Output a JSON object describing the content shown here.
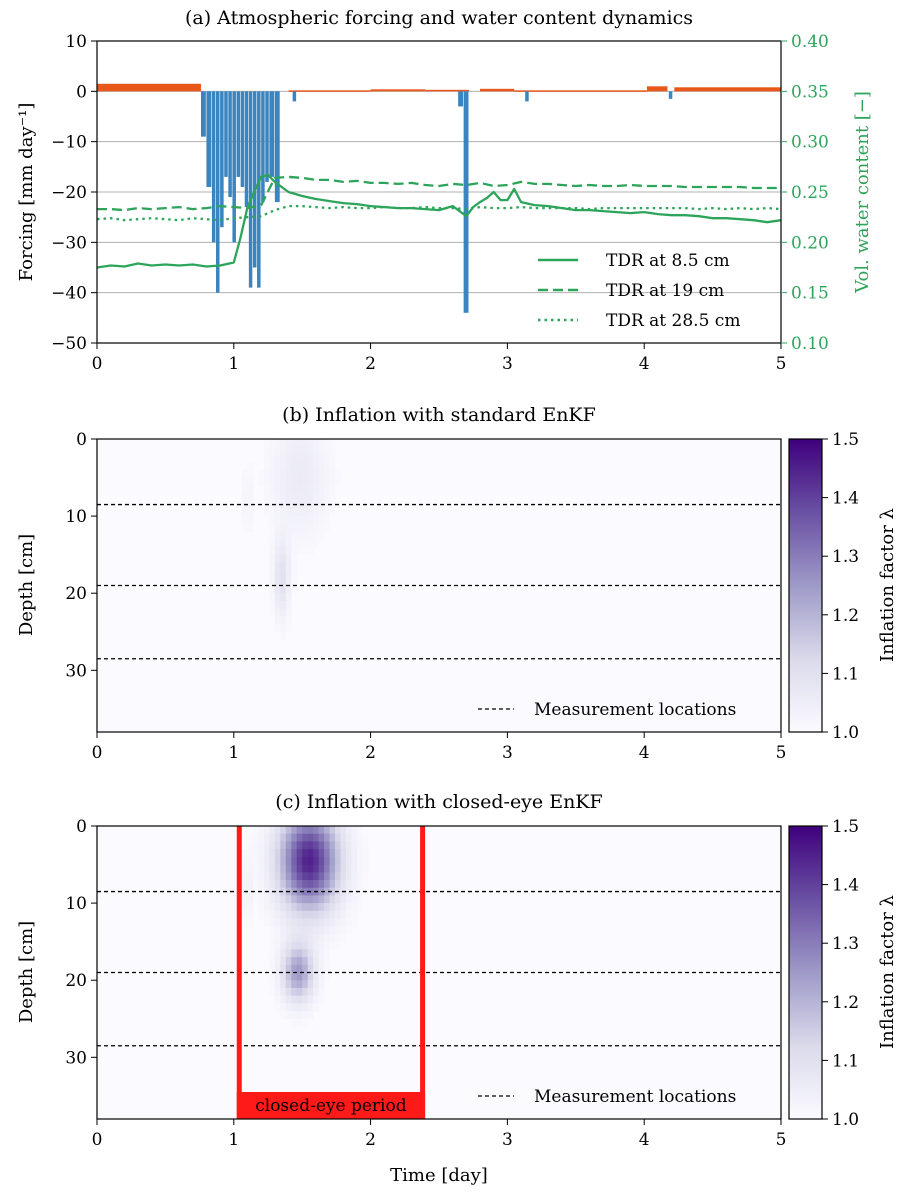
{
  "colors": {
    "rain": "#3a85c0",
    "evap": "#e8581a",
    "tdr": "#2ca55a",
    "closed": "#ff1a1a",
    "cmap_low": "#fbfaff",
    "cmap_high": "#3f007d"
  },
  "chart_data": [
    {
      "type": "bar",
      "title": "(a) Atmospheric forcing and water content dynamics",
      "xlabel": "",
      "ylabel": "Forcing [mm day⁻¹]",
      "y2label": "Vol. water content [−]",
      "xlim": [
        0,
        5
      ],
      "ylim": [
        -50,
        10
      ],
      "y2lim": [
        0.1,
        0.4
      ],
      "x_ticks": [
        "0",
        "1",
        "2",
        "3",
        "4",
        "5"
      ],
      "y_ticks": [
        "10",
        "0",
        "−10",
        "−20",
        "−30",
        "−40",
        "−50"
      ],
      "y2_ticks": [
        "0.40",
        "0.35",
        "0.30",
        "0.25",
        "0.20",
        "0.15",
        "0.10"
      ],
      "grid": "horizontal",
      "legend_position": "bottom-right",
      "evaporation": [
        {
          "x0": 0.0,
          "x1": 0.76,
          "value": 1.5
        },
        {
          "x0": 1.4,
          "x1": 2.0,
          "value": 0.2
        },
        {
          "x0": 2.0,
          "x1": 2.4,
          "value": 0.4
        },
        {
          "x0": 2.4,
          "x1": 2.72,
          "value": 0.3
        },
        {
          "x0": 2.8,
          "x1": 3.05,
          "value": 0.5
        },
        {
          "x0": 3.05,
          "x1": 4.02,
          "value": 0.2
        },
        {
          "x0": 4.02,
          "x1": 4.17,
          "value": 1.0
        },
        {
          "x0": 4.22,
          "x1": 5.0,
          "value": 0.8
        }
      ],
      "precipitation": [
        {
          "x0": 0.76,
          "x1": 0.8,
          "value": -9
        },
        {
          "x0": 0.8,
          "x1": 0.84,
          "value": -19
        },
        {
          "x0": 0.84,
          "x1": 0.87,
          "value": -30
        },
        {
          "x0": 0.87,
          "x1": 0.9,
          "value": -40
        },
        {
          "x0": 0.9,
          "x1": 0.93,
          "value": -27
        },
        {
          "x0": 0.93,
          "x1": 0.96,
          "value": -17
        },
        {
          "x0": 0.96,
          "x1": 0.99,
          "value": -21
        },
        {
          "x0": 0.99,
          "x1": 1.02,
          "value": -30
        },
        {
          "x0": 1.02,
          "x1": 1.05,
          "value": -17
        },
        {
          "x0": 1.05,
          "x1": 1.08,
          "value": -19
        },
        {
          "x0": 1.08,
          "x1": 1.11,
          "value": -23
        },
        {
          "x0": 1.11,
          "x1": 1.14,
          "value": -39
        },
        {
          "x0": 1.14,
          "x1": 1.17,
          "value": -35
        },
        {
          "x0": 1.17,
          "x1": 1.2,
          "value": -39
        },
        {
          "x0": 1.2,
          "x1": 1.23,
          "value": -22
        },
        {
          "x0": 1.23,
          "x1": 1.26,
          "value": -18
        },
        {
          "x0": 1.26,
          "x1": 1.3,
          "value": -17
        },
        {
          "x0": 1.3,
          "x1": 1.34,
          "value": -22
        },
        {
          "x0": 1.43,
          "x1": 1.46,
          "value": -2
        },
        {
          "x0": 2.64,
          "x1": 2.68,
          "value": -3
        },
        {
          "x0": 2.68,
          "x1": 2.72,
          "value": -44
        },
        {
          "x0": 3.13,
          "x1": 3.16,
          "value": -2
        },
        {
          "x0": 4.18,
          "x1": 4.21,
          "value": -1.5
        }
      ],
      "series": [
        {
          "name": "TDR at 8.5 cm",
          "style": "solid",
          "x": [
            0,
            0.1,
            0.2,
            0.3,
            0.4,
            0.5,
            0.6,
            0.7,
            0.8,
            0.9,
            1.0,
            1.05,
            1.1,
            1.15,
            1.2,
            1.25,
            1.3,
            1.4,
            1.5,
            1.6,
            1.7,
            1.8,
            1.9,
            2.0,
            2.1,
            2.2,
            2.3,
            2.4,
            2.5,
            2.6,
            2.7,
            2.75,
            2.8,
            2.85,
            2.9,
            2.95,
            3.0,
            3.05,
            3.1,
            3.2,
            3.3,
            3.4,
            3.5,
            3.6,
            3.7,
            3.8,
            3.9,
            4.0,
            4.1,
            4.2,
            4.3,
            4.4,
            4.5,
            4.6,
            4.7,
            4.8,
            4.9,
            5.0
          ],
          "y": [
            0.175,
            0.177,
            0.176,
            0.179,
            0.177,
            0.178,
            0.177,
            0.178,
            0.176,
            0.177,
            0.18,
            0.205,
            0.235,
            0.25,
            0.265,
            0.267,
            0.26,
            0.25,
            0.246,
            0.243,
            0.241,
            0.239,
            0.238,
            0.236,
            0.235,
            0.234,
            0.234,
            0.233,
            0.232,
            0.236,
            0.226,
            0.235,
            0.24,
            0.244,
            0.25,
            0.242,
            0.242,
            0.253,
            0.24,
            0.237,
            0.236,
            0.234,
            0.232,
            0.232,
            0.231,
            0.23,
            0.229,
            0.23,
            0.228,
            0.227,
            0.227,
            0.226,
            0.224,
            0.224,
            0.223,
            0.222,
            0.22,
            0.222
          ]
        },
        {
          "name": "TDR at 19 cm",
          "style": "dashed",
          "x": [
            0,
            0.1,
            0.2,
            0.3,
            0.4,
            0.5,
            0.6,
            0.7,
            0.8,
            0.9,
            1.0,
            1.1,
            1.2,
            1.3,
            1.4,
            1.5,
            1.6,
            1.7,
            1.8,
            1.9,
            2.0,
            2.1,
            2.2,
            2.3,
            2.4,
            2.5,
            2.6,
            2.7,
            2.8,
            2.9,
            3.0,
            3.1,
            3.2,
            3.3,
            3.4,
            3.5,
            3.6,
            3.7,
            3.8,
            3.9,
            4.0,
            4.1,
            4.2,
            4.3,
            4.4,
            4.5,
            4.6,
            4.7,
            4.8,
            4.9,
            5.0
          ],
          "y": [
            0.233,
            0.233,
            0.232,
            0.234,
            0.233,
            0.234,
            0.235,
            0.233,
            0.234,
            0.236,
            0.235,
            0.234,
            0.237,
            0.264,
            0.265,
            0.264,
            0.262,
            0.262,
            0.26,
            0.261,
            0.259,
            0.259,
            0.258,
            0.259,
            0.257,
            0.256,
            0.258,
            0.257,
            0.259,
            0.256,
            0.257,
            0.26,
            0.258,
            0.258,
            0.257,
            0.256,
            0.257,
            0.256,
            0.256,
            0.257,
            0.256,
            0.256,
            0.256,
            0.255,
            0.255,
            0.255,
            0.255,
            0.255,
            0.254,
            0.254,
            0.254
          ]
        },
        {
          "name": "TDR at 28.5 cm",
          "style": "dotted",
          "x": [
            0,
            0.1,
            0.2,
            0.3,
            0.4,
            0.5,
            0.6,
            0.7,
            0.8,
            0.9,
            1.0,
            1.1,
            1.2,
            1.3,
            1.4,
            1.5,
            1.6,
            1.7,
            1.8,
            1.9,
            2.0,
            2.1,
            2.2,
            2.3,
            2.4,
            2.5,
            2.6,
            2.7,
            2.8,
            2.9,
            3.0,
            3.1,
            3.2,
            3.3,
            3.4,
            3.5,
            3.6,
            3.7,
            3.8,
            3.9,
            4.0,
            4.1,
            4.2,
            4.3,
            4.4,
            4.5,
            4.6,
            4.7,
            4.8,
            4.9,
            5.0
          ],
          "y": [
            0.223,
            0.224,
            0.222,
            0.223,
            0.224,
            0.223,
            0.222,
            0.224,
            0.223,
            0.222,
            0.224,
            0.225,
            0.226,
            0.232,
            0.236,
            0.236,
            0.235,
            0.234,
            0.235,
            0.234,
            0.234,
            0.235,
            0.234,
            0.234,
            0.235,
            0.234,
            0.234,
            0.233,
            0.235,
            0.234,
            0.234,
            0.235,
            0.234,
            0.234,
            0.234,
            0.234,
            0.233,
            0.234,
            0.234,
            0.234,
            0.234,
            0.234,
            0.234,
            0.234,
            0.233,
            0.234,
            0.233,
            0.234,
            0.233,
            0.234,
            0.233
          ]
        }
      ]
    },
    {
      "type": "heatmap",
      "title": "(b) Inflation with standard EnKF",
      "xlabel": "",
      "ylabel": "Depth [cm]",
      "colorbar_label": "Inflation factor λ",
      "xlim": [
        0,
        5
      ],
      "ylim": [
        38,
        0
      ],
      "clim": [
        1.0,
        1.5
      ],
      "x_ticks": [
        "0",
        "1",
        "2",
        "3",
        "4",
        "5"
      ],
      "y_ticks": [
        "0",
        "10",
        "20",
        "30"
      ],
      "cbar_ticks": [
        "1.5",
        "1.4",
        "1.3",
        "1.2",
        "1.1",
        "1.0"
      ],
      "measurement_depths": [
        8.5,
        19,
        28.5
      ],
      "legend_label": "Measurement locations",
      "legend_position": "bottom-right",
      "blobs": [
        {
          "t": 1.48,
          "d": 5,
          "st": 0.14,
          "sd": 5,
          "amp": 0.06
        },
        {
          "t": 1.35,
          "d": 18,
          "st": 0.04,
          "sd": 3.5,
          "amp": 0.1
        },
        {
          "t": 1.1,
          "d": 8,
          "st": 0.02,
          "sd": 3,
          "amp": 0.03
        }
      ]
    },
    {
      "type": "heatmap",
      "title": "(c) Inflation with closed-eye EnKF",
      "xlabel": "Time [day]",
      "ylabel": "Depth [cm]",
      "colorbar_label": "Inflation factor λ",
      "xlim": [
        0,
        5
      ],
      "ylim": [
        38,
        0
      ],
      "clim": [
        1.0,
        1.5
      ],
      "x_ticks": [
        "0",
        "1",
        "2",
        "3",
        "4",
        "5"
      ],
      "y_ticks": [
        "0",
        "10",
        "20",
        "30"
      ],
      "cbar_ticks": [
        "1.5",
        "1.4",
        "1.3",
        "1.2",
        "1.1",
        "1.0"
      ],
      "measurement_depths": [
        8.5,
        19,
        28.5
      ],
      "legend_label": "Measurement locations",
      "legend_position": "bottom-right",
      "closed_eye_period": {
        "label": "closed-eye period",
        "start": 1.04,
        "end": 2.38
      },
      "blobs": [
        {
          "t": 1.55,
          "d": 4.5,
          "st": 0.15,
          "sd": 4.5,
          "amp": 0.45
        },
        {
          "t": 1.47,
          "d": 19,
          "st": 0.08,
          "sd": 2.6,
          "amp": 0.25
        },
        {
          "t": 1.1,
          "d": 8,
          "st": 0.02,
          "sd": 3,
          "amp": 0.04
        }
      ]
    }
  ]
}
